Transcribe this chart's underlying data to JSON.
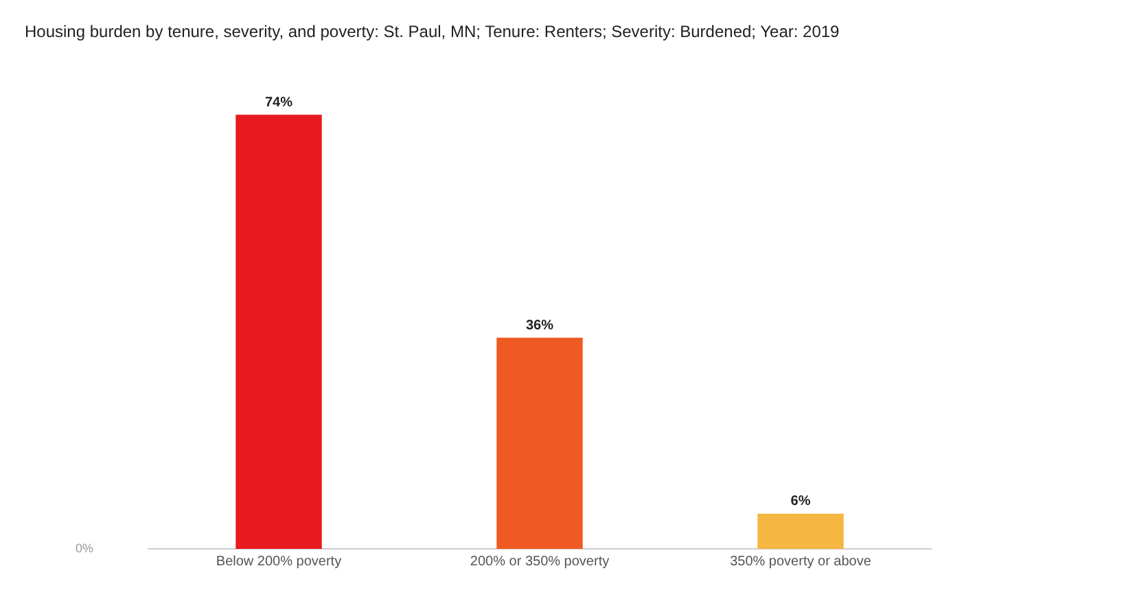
{
  "chart_data": {
    "type": "bar",
    "title": "Housing burden by tenure, severity, and poverty: St. Paul, MN; Tenure: Renters; Severity: Burdened; Year: 2019",
    "categories": [
      "Below 200% poverty",
      "200% or 350% poverty",
      "350% poverty or above"
    ],
    "values": [
      74,
      36,
      6
    ],
    "annotations": [
      "0%"
    ],
    "colors": [
      "#e8191f",
      "#ee5a22",
      "#f5b642"
    ],
    "value_labels": [
      "74%",
      "36%",
      "6%"
    ],
    "grid": false
  }
}
